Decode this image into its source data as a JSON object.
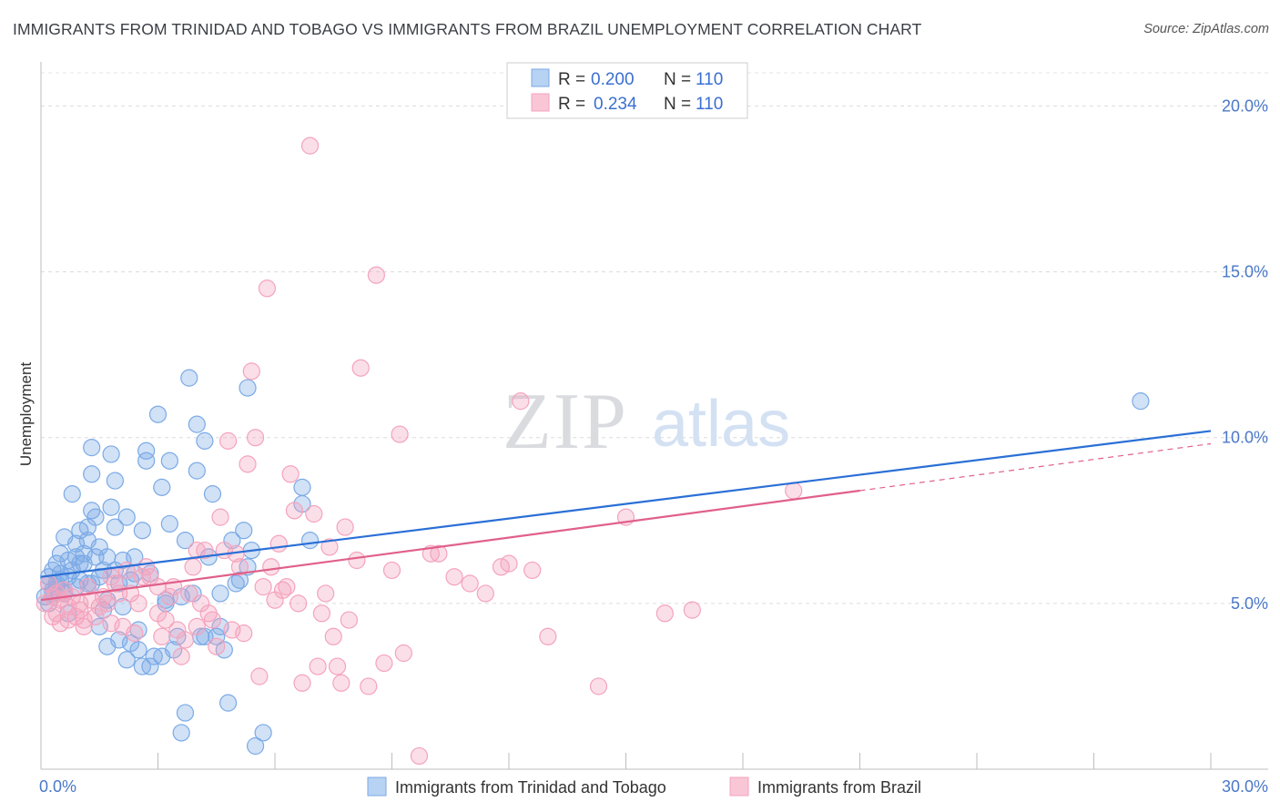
{
  "title": "IMMIGRANTS FROM TRINIDAD AND TOBAGO VS IMMIGRANTS FROM BRAZIL UNEMPLOYMENT CORRELATION CHART",
  "source": "Source: ZipAtlas.com",
  "watermark": {
    "zip": "ZIP",
    "atlas": "atlas"
  },
  "legend": {
    "rows": [
      {
        "r_label": "R =",
        "r_value": "0.200",
        "n_label": "N =",
        "n_value": "110"
      },
      {
        "r_label": "R =",
        "r_value": "0.234",
        "n_label": "N =",
        "n_value": "110"
      }
    ]
  },
  "chart_data": {
    "type": "scatter",
    "title": "IMMIGRANTS FROM TRINIDAD AND TOBAGO VS IMMIGRANTS FROM BRAZIL UNEMPLOYMENT CORRELATION CHART",
    "xlabel": "",
    "ylabel": "Unemployment",
    "xlim": [
      0,
      30
    ],
    "ylim": [
      0,
      21
    ],
    "x_tick_labels": [
      "0.0%",
      "30.0%"
    ],
    "y_ticks": [
      5,
      10,
      15,
      20
    ],
    "y_tick_labels": [
      "5.0%",
      "10.0%",
      "15.0%",
      "20.0%"
    ],
    "grid": true,
    "legend_placement": "top-center",
    "series": [
      {
        "name": "Immigrants from Trinidad and Tobago",
        "color": "#7aaae6",
        "line_color": "#2a6fd6",
        "trend": {
          "x": [
            0,
            30
          ],
          "y": [
            5.8,
            10.2
          ]
        },
        "points": [
          [
            0.2,
            5.6
          ],
          [
            0.2,
            5.8
          ],
          [
            0.3,
            5.4
          ],
          [
            0.3,
            6.0
          ],
          [
            0.4,
            5.5
          ],
          [
            0.4,
            6.2
          ],
          [
            0.5,
            5.7
          ],
          [
            0.5,
            5.9
          ],
          [
            0.5,
            6.5
          ],
          [
            0.6,
            7.0
          ],
          [
            0.6,
            5.3
          ],
          [
            0.7,
            5.8
          ],
          [
            0.7,
            6.3
          ],
          [
            0.8,
            6.0
          ],
          [
            0.8,
            8.3
          ],
          [
            0.9,
            6.4
          ],
          [
            0.9,
            6.8
          ],
          [
            0.9,
            5.5
          ],
          [
            1.0,
            7.2
          ],
          [
            1.0,
            6.2
          ],
          [
            1.0,
            5.7
          ],
          [
            1.1,
            6.2
          ],
          [
            1.1,
            6.5
          ],
          [
            1.2,
            7.3
          ],
          [
            1.2,
            5.6
          ],
          [
            1.2,
            6.9
          ],
          [
            1.3,
            7.8
          ],
          [
            1.3,
            5.6
          ],
          [
            1.3,
            8.9
          ],
          [
            1.3,
            9.7
          ],
          [
            1.4,
            6.4
          ],
          [
            1.4,
            7.6
          ],
          [
            1.5,
            5.8
          ],
          [
            1.5,
            6.7
          ],
          [
            1.6,
            6.0
          ],
          [
            1.6,
            4.8
          ],
          [
            1.7,
            6.4
          ],
          [
            1.7,
            3.7
          ],
          [
            1.7,
            5.1
          ],
          [
            1.8,
            7.9
          ],
          [
            1.8,
            9.5
          ],
          [
            1.9,
            7.3
          ],
          [
            1.9,
            8.7
          ],
          [
            1.9,
            6.0
          ],
          [
            2.0,
            3.9
          ],
          [
            2.0,
            5.6
          ],
          [
            2.1,
            4.9
          ],
          [
            2.1,
            6.3
          ],
          [
            2.2,
            7.6
          ],
          [
            2.2,
            3.3
          ],
          [
            2.3,
            5.7
          ],
          [
            2.3,
            3.8
          ],
          [
            2.4,
            6.4
          ],
          [
            2.4,
            5.9
          ],
          [
            2.5,
            3.6
          ],
          [
            2.5,
            4.2
          ],
          [
            2.6,
            7.2
          ],
          [
            2.7,
            9.6
          ],
          [
            2.7,
            9.3
          ],
          [
            2.8,
            5.9
          ],
          [
            2.8,
            3.1
          ],
          [
            2.9,
            3.4
          ],
          [
            3.0,
            10.7
          ],
          [
            3.1,
            8.5
          ],
          [
            3.2,
            5.1
          ],
          [
            3.3,
            9.3
          ],
          [
            3.3,
            7.4
          ],
          [
            3.4,
            3.6
          ],
          [
            3.5,
            4.0
          ],
          [
            3.6,
            1.1
          ],
          [
            3.7,
            6.9
          ],
          [
            3.7,
            1.7
          ],
          [
            3.8,
            11.8
          ],
          [
            3.9,
            5.3
          ],
          [
            4.0,
            10.4
          ],
          [
            4.0,
            9.0
          ],
          [
            4.1,
            4.0
          ],
          [
            4.2,
            9.9
          ],
          [
            4.3,
            6.4
          ],
          [
            4.4,
            8.3
          ],
          [
            4.5,
            4.0
          ],
          [
            4.6,
            5.3
          ],
          [
            4.7,
            3.6
          ],
          [
            4.8,
            2.0
          ],
          [
            4.9,
            6.9
          ],
          [
            5.0,
            5.6
          ],
          [
            5.1,
            5.7
          ],
          [
            5.2,
            7.2
          ],
          [
            5.3,
            11.5
          ],
          [
            5.4,
            6.6
          ],
          [
            5.5,
            0.7
          ],
          [
            5.7,
            1.1
          ],
          [
            6.7,
            8.5
          ],
          [
            6.7,
            8.0
          ],
          [
            6.9,
            6.9
          ],
          [
            0.1,
            5.2
          ],
          [
            0.2,
            5.0
          ],
          [
            0.3,
            5.3
          ],
          [
            0.4,
            5.6
          ],
          [
            0.6,
            5.4
          ],
          [
            0.7,
            4.7
          ],
          [
            1.5,
            4.3
          ],
          [
            2.6,
            3.1
          ],
          [
            3.1,
            3.4
          ],
          [
            3.2,
            5.0
          ],
          [
            3.6,
            5.2
          ],
          [
            4.2,
            4.0
          ],
          [
            4.6,
            4.3
          ],
          [
            5.3,
            6.1
          ],
          [
            28.2,
            11.1
          ]
        ]
      },
      {
        "name": "Immigrants from Brazil",
        "color": "#f4a3bd",
        "line_color": "#e0608a",
        "trend": {
          "x": [
            0,
            21
          ],
          "y": [
            5.1,
            8.4
          ]
        },
        "points": [
          [
            0.1,
            5.0
          ],
          [
            0.2,
            5.6
          ],
          [
            0.3,
            5.2
          ],
          [
            0.3,
            4.6
          ],
          [
            0.4,
            5.3
          ],
          [
            0.5,
            5.1
          ],
          [
            0.5,
            4.4
          ],
          [
            0.6,
            5.4
          ],
          [
            0.7,
            4.9
          ],
          [
            0.7,
            4.5
          ],
          [
            0.8,
            5.2
          ],
          [
            0.9,
            4.6
          ],
          [
            1.0,
            4.8
          ],
          [
            1.0,
            5.0
          ],
          [
            1.1,
            4.5
          ],
          [
            1.2,
            5.5
          ],
          [
            1.3,
            5.1
          ],
          [
            1.4,
            4.6
          ],
          [
            1.5,
            4.9
          ],
          [
            1.6,
            5.2
          ],
          [
            1.7,
            5.0
          ],
          [
            1.8,
            5.8
          ],
          [
            1.8,
            4.4
          ],
          [
            1.9,
            5.6
          ],
          [
            2.0,
            5.3
          ],
          [
            2.1,
            4.3
          ],
          [
            2.2,
            6.0
          ],
          [
            2.3,
            5.3
          ],
          [
            2.4,
            4.1
          ],
          [
            2.5,
            5.0
          ],
          [
            2.6,
            5.8
          ],
          [
            2.7,
            6.1
          ],
          [
            2.8,
            5.8
          ],
          [
            3.0,
            5.5
          ],
          [
            3.0,
            4.7
          ],
          [
            3.1,
            4.0
          ],
          [
            3.2,
            4.5
          ],
          [
            3.3,
            5.2
          ],
          [
            3.4,
            5.5
          ],
          [
            3.5,
            4.2
          ],
          [
            3.6,
            3.4
          ],
          [
            3.7,
            3.9
          ],
          [
            3.8,
            5.3
          ],
          [
            3.9,
            6.1
          ],
          [
            4.0,
            4.3
          ],
          [
            4.0,
            6.6
          ],
          [
            4.1,
            5.0
          ],
          [
            4.2,
            6.6
          ],
          [
            4.3,
            4.7
          ],
          [
            4.4,
            4.5
          ],
          [
            4.5,
            3.7
          ],
          [
            4.6,
            7.6
          ],
          [
            4.7,
            6.6
          ],
          [
            4.8,
            9.9
          ],
          [
            4.9,
            4.2
          ],
          [
            5.0,
            6.5
          ],
          [
            5.1,
            6.1
          ],
          [
            5.2,
            4.1
          ],
          [
            5.3,
            9.2
          ],
          [
            5.4,
            12.0
          ],
          [
            5.5,
            10.0
          ],
          [
            5.6,
            2.8
          ],
          [
            5.7,
            5.5
          ],
          [
            5.8,
            14.5
          ],
          [
            5.9,
            6.1
          ],
          [
            6.0,
            5.1
          ],
          [
            6.1,
            6.8
          ],
          [
            6.2,
            5.4
          ],
          [
            6.3,
            5.5
          ],
          [
            6.4,
            8.9
          ],
          [
            6.5,
            7.8
          ],
          [
            6.6,
            5.0
          ],
          [
            6.7,
            2.6
          ],
          [
            6.9,
            18.8
          ],
          [
            7.0,
            7.7
          ],
          [
            7.1,
            3.1
          ],
          [
            7.2,
            4.7
          ],
          [
            7.3,
            5.3
          ],
          [
            7.4,
            6.7
          ],
          [
            7.5,
            4.0
          ],
          [
            7.6,
            3.1
          ],
          [
            7.7,
            2.6
          ],
          [
            7.8,
            7.3
          ],
          [
            7.9,
            4.5
          ],
          [
            8.1,
            6.3
          ],
          [
            8.2,
            12.1
          ],
          [
            8.4,
            2.5
          ],
          [
            8.6,
            14.9
          ],
          [
            8.8,
            3.2
          ],
          [
            9.0,
            6.0
          ],
          [
            9.2,
            10.1
          ],
          [
            9.3,
            3.5
          ],
          [
            9.7,
            0.4
          ],
          [
            10.0,
            6.5
          ],
          [
            10.2,
            6.5
          ],
          [
            10.6,
            5.8
          ],
          [
            11.0,
            5.6
          ],
          [
            11.4,
            5.3
          ],
          [
            11.8,
            6.1
          ],
          [
            12.0,
            6.2
          ],
          [
            12.3,
            11.1
          ],
          [
            12.6,
            6.0
          ],
          [
            13.0,
            4.0
          ],
          [
            14.3,
            2.5
          ],
          [
            15.0,
            7.6
          ],
          [
            16.0,
            4.7
          ],
          [
            16.7,
            4.8
          ],
          [
            19.3,
            8.4
          ],
          [
            0.4,
            4.7
          ],
          [
            1.1,
            4.3
          ]
        ]
      }
    ]
  }
}
